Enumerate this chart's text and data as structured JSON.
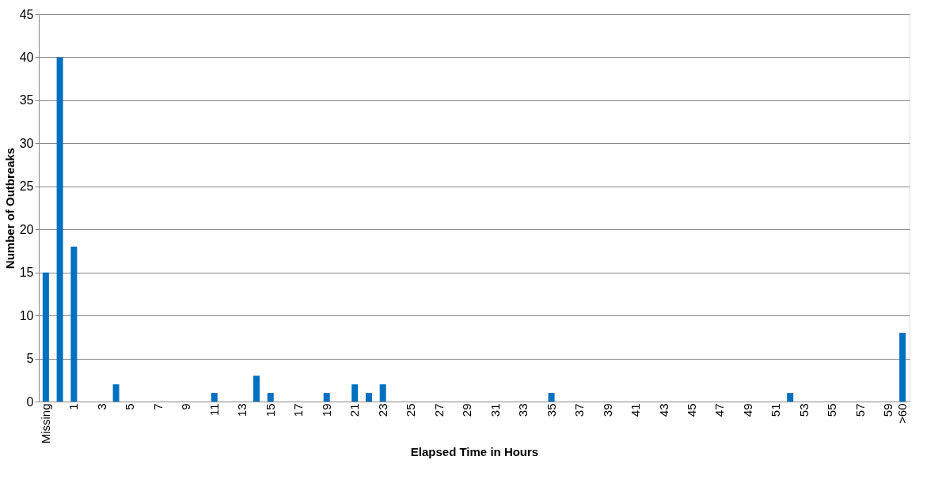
{
  "chart_data": {
    "type": "bar",
    "xlabel": "Elapsed Time in Hours",
    "ylabel": "Number of Outbreaks",
    "categories": [
      "Missing",
      null,
      "1",
      null,
      "3",
      null,
      "5",
      null,
      "7",
      null,
      "9",
      null,
      "11",
      null,
      "13",
      null,
      "15",
      null,
      "17",
      null,
      "19",
      null,
      "21",
      null,
      "23",
      null,
      "25",
      null,
      "27",
      null,
      "29",
      null,
      "31",
      null,
      "33",
      null,
      "35",
      null,
      "37",
      null,
      "39",
      null,
      "41",
      null,
      "43",
      null,
      "45",
      null,
      "47",
      null,
      "49",
      null,
      "51",
      null,
      "53",
      null,
      "55",
      null,
      "57",
      null,
      "59",
      ">60"
    ],
    "values": [
      15,
      40,
      18,
      null,
      null,
      2,
      null,
      null,
      null,
      null,
      null,
      null,
      1,
      null,
      null,
      3,
      1,
      null,
      null,
      null,
      1,
      null,
      2,
      1,
      2,
      null,
      null,
      null,
      null,
      null,
      null,
      null,
      null,
      null,
      null,
      null,
      1,
      null,
      null,
      null,
      null,
      null,
      null,
      null,
      null,
      null,
      null,
      null,
      null,
      null,
      null,
      null,
      null,
      1,
      null,
      null,
      null,
      null,
      null,
      null,
      null,
      8
    ],
    "color": "#0070c0",
    "ylim": [
      0,
      45
    ],
    "yticks": [
      0,
      5,
      10,
      15,
      20,
      25,
      30,
      35,
      40,
      45
    ],
    "grid": "y"
  }
}
